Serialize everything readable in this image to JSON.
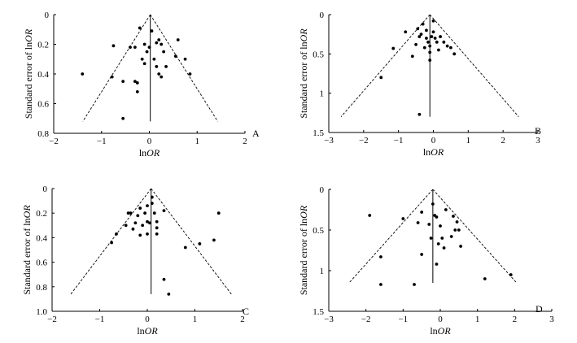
{
  "chart_data": [
    {
      "type": "scatter",
      "panel_label": "A",
      "title": "",
      "xlabel": {
        "prefix": "ln",
        "italic": "OR"
      },
      "ylabel": {
        "prefix": "Standard error of ln",
        "italic": "OR"
      },
      "xlim": [
        -2,
        2
      ],
      "ylim": [
        0,
        0.8
      ],
      "x_ticks": [
        -2,
        -1,
        0,
        1,
        2
      ],
      "x_tick_labels": [
        "−2",
        "−1",
        "0",
        "1",
        "2"
      ],
      "y_ticks": [
        0,
        0.2,
        0.4,
        0.6,
        0.8
      ],
      "y_tick_labels": [
        "0",
        "0.2",
        "0.4",
        "0.6",
        "0.8"
      ],
      "pooled_lnOR": 0.02,
      "funnel_max_se": 0.72,
      "points": [
        {
          "x": -1.4,
          "y": 0.4
        },
        {
          "x": -0.75,
          "y": 0.21
        },
        {
          "x": -0.78,
          "y": 0.42
        },
        {
          "x": -0.55,
          "y": 0.45
        },
        {
          "x": -0.4,
          "y": 0.22
        },
        {
          "x": -0.3,
          "y": 0.22
        },
        {
          "x": -0.2,
          "y": 0.09
        },
        {
          "x": -0.15,
          "y": 0.3
        },
        {
          "x": -0.1,
          "y": 0.33
        },
        {
          "x": -0.1,
          "y": 0.2
        },
        {
          "x": -0.05,
          "y": 0.25
        },
        {
          "x": 0.0,
          "y": 0.22
        },
        {
          "x": 0.05,
          "y": 0.11
        },
        {
          "x": 0.1,
          "y": 0.3
        },
        {
          "x": 0.15,
          "y": 0.35
        },
        {
          "x": 0.2,
          "y": 0.4
        },
        {
          "x": 0.25,
          "y": 0.42
        },
        {
          "x": 0.2,
          "y": 0.17
        },
        {
          "x": 0.25,
          "y": 0.2
        },
        {
          "x": 0.3,
          "y": 0.25
        },
        {
          "x": 0.35,
          "y": 0.35
        },
        {
          "x": -0.25,
          "y": 0.46
        },
        {
          "x": -0.3,
          "y": 0.45
        },
        {
          "x": -0.25,
          "y": 0.52
        },
        {
          "x": -0.55,
          "y": 0.7
        },
        {
          "x": 0.55,
          "y": 0.28
        },
        {
          "x": 0.6,
          "y": 0.17
        },
        {
          "x": 0.75,
          "y": 0.3
        },
        {
          "x": 0.85,
          "y": 0.4
        },
        {
          "x": 0.15,
          "y": 0.19
        }
      ]
    },
    {
      "type": "scatter",
      "panel_label": "B",
      "title": "",
      "xlabel": {
        "prefix": "ln",
        "italic": "OR"
      },
      "ylabel": {
        "prefix": "Standard error of ln",
        "italic": "OR"
      },
      "xlim": [
        -3,
        3
      ],
      "ylim": [
        0,
        1.5
      ],
      "x_ticks": [
        -3,
        -2,
        -1,
        0,
        1,
        2,
        3
      ],
      "x_tick_labels": [
        "−3",
        "−2",
        "−1",
        "0",
        "1",
        "2",
        "3"
      ],
      "y_ticks": [
        0,
        0.5,
        1,
        1.5
      ],
      "y_tick_labels": [
        "0",
        "0.5",
        "1",
        "1.5"
      ],
      "pooled_lnOR": -0.1,
      "funnel_max_se": 1.3,
      "points": [
        {
          "x": -1.5,
          "y": 0.8
        },
        {
          "x": -1.15,
          "y": 0.43
        },
        {
          "x": -0.8,
          "y": 0.22
        },
        {
          "x": -0.6,
          "y": 0.53
        },
        {
          "x": -0.5,
          "y": 0.38
        },
        {
          "x": -0.45,
          "y": 0.18
        },
        {
          "x": -0.4,
          "y": 0.28
        },
        {
          "x": -0.35,
          "y": 0.25
        },
        {
          "x": -0.3,
          "y": 0.12
        },
        {
          "x": -0.25,
          "y": 0.42
        },
        {
          "x": -0.2,
          "y": 0.2
        },
        {
          "x": -0.2,
          "y": 0.3
        },
        {
          "x": -0.15,
          "y": 0.35
        },
        {
          "x": -0.1,
          "y": 0.4
        },
        {
          "x": -0.1,
          "y": 0.58
        },
        {
          "x": -0.05,
          "y": 0.28
        },
        {
          "x": 0.0,
          "y": 0.22
        },
        {
          "x": 0.0,
          "y": 0.08
        },
        {
          "x": 0.05,
          "y": 0.3
        },
        {
          "x": 0.1,
          "y": 0.35
        },
        {
          "x": 0.15,
          "y": 0.45
        },
        {
          "x": 0.2,
          "y": 0.28
        },
        {
          "x": 0.3,
          "y": 0.35
        },
        {
          "x": 0.4,
          "y": 0.4
        },
        {
          "x": 0.5,
          "y": 0.42
        },
        {
          "x": 0.6,
          "y": 0.5
        },
        {
          "x": -0.4,
          "y": 1.27
        },
        {
          "x": -0.1,
          "y": 0.48
        }
      ]
    },
    {
      "type": "scatter",
      "panel_label": "C",
      "title": "",
      "xlabel": {
        "prefix": "ln",
        "italic": "OR"
      },
      "ylabel": {
        "prefix": "Standard error of ln",
        "italic": "OR"
      },
      "xlim": [
        -2,
        2
      ],
      "ylim": [
        0,
        1.0
      ],
      "x_ticks": [
        -2,
        -1,
        0,
        1,
        2
      ],
      "x_tick_labels": [
        "−2",
        "−1",
        "0",
        "1",
        "2"
      ],
      "y_ticks": [
        0,
        0.2,
        0.4,
        0.6,
        0.8,
        1.0
      ],
      "y_tick_labels": [
        "0",
        "0.2",
        "0.4",
        "0.6",
        "0.8",
        "1.0"
      ],
      "pooled_lnOR": 0.08,
      "funnel_max_se": 0.86,
      "points": [
        {
          "x": -0.75,
          "y": 0.44
        },
        {
          "x": -0.65,
          "y": 0.37
        },
        {
          "x": -0.45,
          "y": 0.3
        },
        {
          "x": -0.4,
          "y": 0.2
        },
        {
          "x": -0.35,
          "y": 0.2
        },
        {
          "x": -0.3,
          "y": 0.33
        },
        {
          "x": -0.25,
          "y": 0.28
        },
        {
          "x": -0.2,
          "y": 0.22
        },
        {
          "x": -0.15,
          "y": 0.16
        },
        {
          "x": -0.15,
          "y": 0.38
        },
        {
          "x": -0.1,
          "y": 0.3
        },
        {
          "x": -0.05,
          "y": 0.2
        },
        {
          "x": 0.0,
          "y": 0.37
        },
        {
          "x": 0.0,
          "y": 0.27
        },
        {
          "x": 0.05,
          "y": 0.28
        },
        {
          "x": 0.1,
          "y": 0.07
        },
        {
          "x": 0.1,
          "y": 0.12
        },
        {
          "x": 0.15,
          "y": 0.2
        },
        {
          "x": 0.2,
          "y": 0.27
        },
        {
          "x": 0.2,
          "y": 0.32
        },
        {
          "x": 0.2,
          "y": 0.37
        },
        {
          "x": 0.35,
          "y": 0.18
        },
        {
          "x": 0.35,
          "y": 0.74
        },
        {
          "x": 0.45,
          "y": 0.86
        },
        {
          "x": 0.8,
          "y": 0.48
        },
        {
          "x": 1.1,
          "y": 0.45
        },
        {
          "x": 1.4,
          "y": 0.42
        },
        {
          "x": 1.5,
          "y": 0.2
        },
        {
          "x": 0.0,
          "y": 0.14
        }
      ]
    },
    {
      "type": "scatter",
      "panel_label": "D",
      "title": "",
      "xlabel": {
        "prefix": "ln",
        "italic": "OR"
      },
      "ylabel": {
        "prefix": "Standard error of ln",
        "italic": "OR"
      },
      "xlim": [
        -3,
        3
      ],
      "ylim": [
        0,
        1.5
      ],
      "x_ticks": [
        -3,
        -2,
        -1,
        0,
        1,
        2,
        3
      ],
      "x_tick_labels": [
        "−3",
        "−2",
        "−1",
        "0",
        "1",
        "2",
        "3"
      ],
      "y_ticks": [
        0,
        0.5,
        1,
        1.5
      ],
      "y_tick_labels": [
        "0",
        "0.5",
        "1",
        "1.5"
      ],
      "pooled_lnOR": -0.2,
      "funnel_max_se": 1.15,
      "points": [
        {
          "x": -1.9,
          "y": 0.32
        },
        {
          "x": -1.6,
          "y": 0.83
        },
        {
          "x": -1.6,
          "y": 1.17
        },
        {
          "x": -1.0,
          "y": 0.36
        },
        {
          "x": -0.7,
          "y": 1.17
        },
        {
          "x": -0.6,
          "y": 0.41
        },
        {
          "x": -0.5,
          "y": 0.28
        },
        {
          "x": -0.5,
          "y": 0.8
        },
        {
          "x": -0.3,
          "y": 0.43
        },
        {
          "x": -0.25,
          "y": 0.6
        },
        {
          "x": -0.2,
          "y": 0.18
        },
        {
          "x": -0.15,
          "y": 0.32
        },
        {
          "x": -0.1,
          "y": 0.34
        },
        {
          "x": -0.1,
          "y": 0.92
        },
        {
          "x": -0.05,
          "y": 0.67
        },
        {
          "x": 0.0,
          "y": 0.45
        },
        {
          "x": 0.05,
          "y": 0.6
        },
        {
          "x": 0.1,
          "y": 0.72
        },
        {
          "x": 0.15,
          "y": 0.25
        },
        {
          "x": 0.3,
          "y": 0.58
        },
        {
          "x": 0.35,
          "y": 0.33
        },
        {
          "x": 0.4,
          "y": 0.5
        },
        {
          "x": 0.45,
          "y": 0.4
        },
        {
          "x": 0.5,
          "y": 0.5
        },
        {
          "x": 0.55,
          "y": 0.7
        },
        {
          "x": 1.2,
          "y": 1.1
        },
        {
          "x": 1.9,
          "y": 1.05
        }
      ]
    }
  ]
}
